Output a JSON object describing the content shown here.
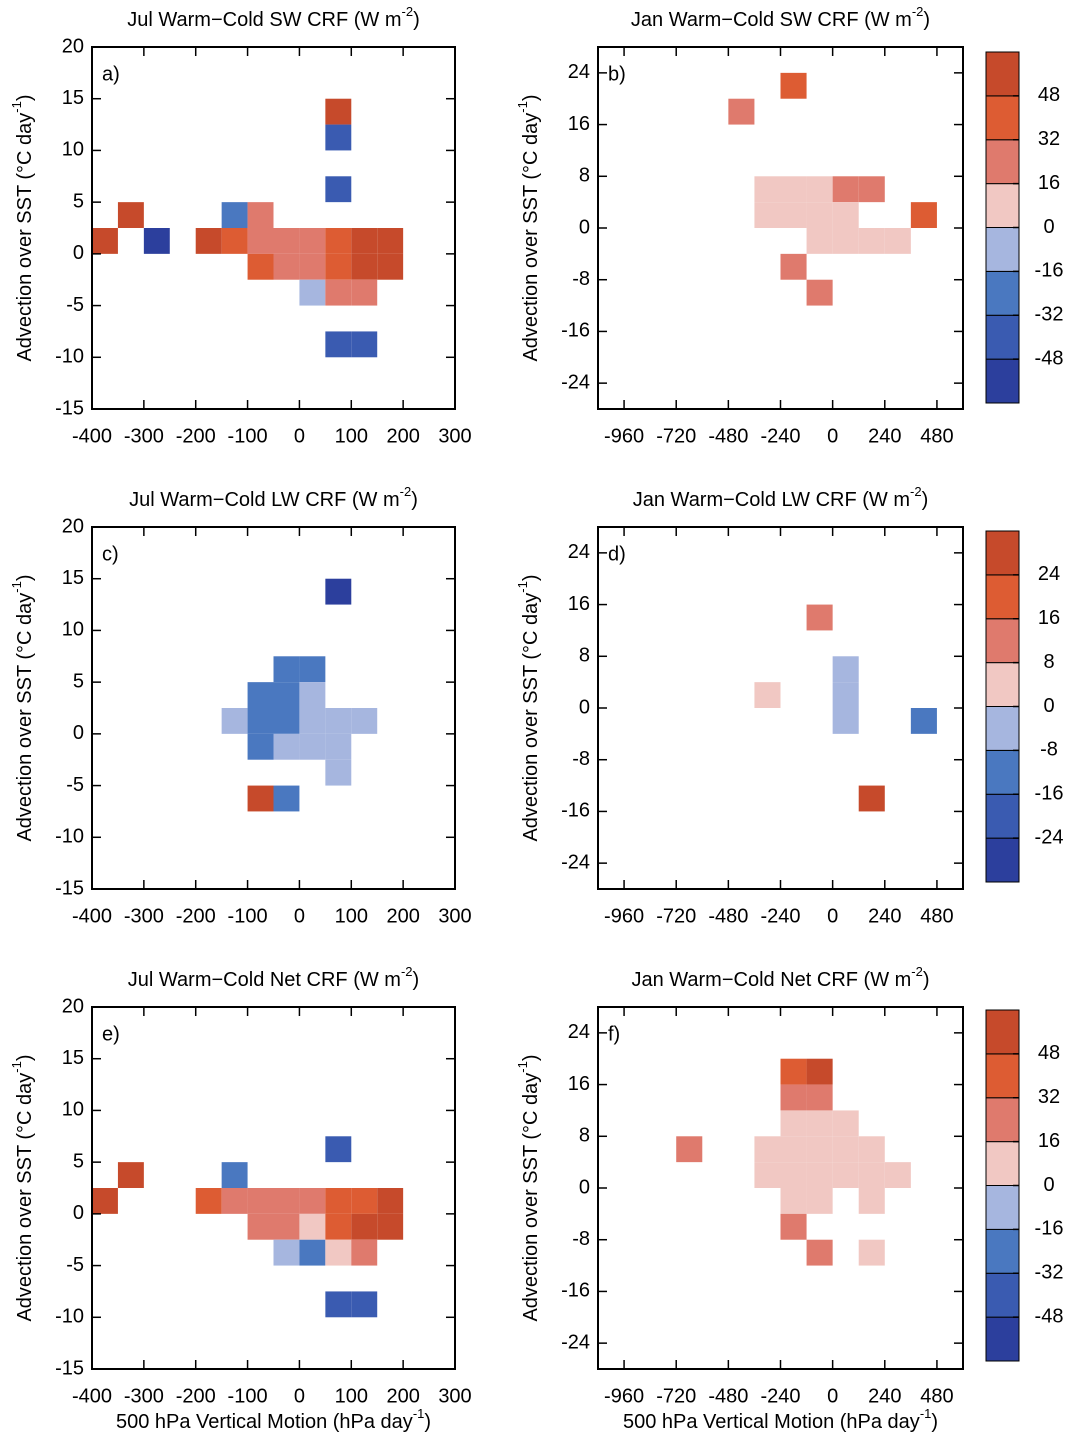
{
  "chart_data": [
    {
      "type": "heatmap",
      "panel": "a)",
      "title": [
        "Jul Warm−Cold SW CRF (W m",
        "-2",
        ")"
      ],
      "y_label": [
        "Advection over SST (°C day",
        "-1",
        ")"
      ],
      "xlim": [
        -400,
        300
      ],
      "xticks": [
        -400,
        -300,
        -200,
        -100,
        0,
        100,
        200,
        300
      ],
      "ylim": [
        -15,
        20
      ],
      "yticks": [
        -15,
        -10,
        -5,
        0,
        5,
        10,
        15,
        20
      ],
      "x": [
        [
          -400,
          -350
        ],
        [
          -350,
          -300
        ],
        [
          -300,
          -250
        ],
        [
          -200,
          -150
        ],
        [
          -150,
          -100
        ],
        [
          -150,
          -100
        ],
        [
          -100,
          -50
        ],
        [
          -100,
          -50
        ],
        [
          -100,
          -50
        ],
        [
          -50,
          0
        ],
        [
          -50,
          0
        ],
        [
          0,
          50
        ],
        [
          0,
          50
        ],
        [
          0,
          50
        ],
        [
          50,
          100
        ],
        [
          50,
          100
        ],
        [
          50,
          100
        ],
        [
          50,
          100
        ],
        [
          50,
          100
        ],
        [
          50,
          100
        ],
        [
          50,
          100
        ],
        [
          100,
          150
        ],
        [
          100,
          150
        ],
        [
          100,
          150
        ],
        [
          100,
          150
        ],
        [
          150,
          200
        ],
        [
          150,
          200
        ]
      ],
      "y": [
        [
          0,
          2.5
        ],
        [
          2.5,
          5
        ],
        [
          0,
          2.5
        ],
        [
          0,
          2.5
        ],
        [
          0,
          2.5
        ],
        [
          2.5,
          5
        ],
        [
          2.5,
          5
        ],
        [
          0,
          2.5
        ],
        [
          -2.5,
          0
        ],
        [
          0,
          2.5
        ],
        [
          -2.5,
          0
        ],
        [
          0,
          2.5
        ],
        [
          -2.5,
          0
        ],
        [
          -5,
          -2.5
        ],
        [
          12.5,
          15
        ],
        [
          10,
          12.5
        ],
        [
          5,
          7.5
        ],
        [
          0,
          2.5
        ],
        [
          -2.5,
          0
        ],
        [
          -5,
          -2.5
        ],
        [
          -10,
          -7.5
        ],
        [
          0,
          2.5
        ],
        [
          -2.5,
          0
        ],
        [
          -5,
          -2.5
        ],
        [
          -10,
          -7.5
        ],
        [
          0,
          2.5
        ],
        [
          -2.5,
          0
        ]
      ],
      "values": [
        56,
        56,
        -56,
        56,
        40,
        -24,
        24,
        24,
        40,
        24,
        24,
        24,
        24,
        -8,
        56,
        -40,
        -40,
        40,
        40,
        24,
        -40,
        56,
        56,
        24,
        -40,
        56,
        56
      ]
    },
    {
      "type": "heatmap",
      "panel": "b)",
      "title": [
        "Jan Warm−Cold SW CRF (W m",
        "-2",
        ")"
      ],
      "y_label": [
        "Advection over SST (°C day",
        "-1",
        ")"
      ],
      "xlim": [
        -1080,
        600
      ],
      "xticks": [
        -960,
        -720,
        -480,
        -240,
        0,
        240,
        480
      ],
      "ylim": [
        -28,
        28
      ],
      "yticks": [
        -24,
        -16,
        -8,
        0,
        8,
        16,
        24
      ],
      "x": [
        [
          -240,
          -120
        ],
        [
          -480,
          -360
        ],
        [
          -360,
          -240
        ],
        [
          -240,
          -120
        ],
        [
          -120,
          0
        ],
        [
          0,
          120
        ],
        [
          120,
          240
        ],
        [
          -360,
          -240
        ],
        [
          -240,
          -120
        ],
        [
          -120,
          0
        ],
        [
          0,
          120
        ],
        [
          360,
          480
        ],
        [
          -120,
          0
        ],
        [
          0,
          120
        ],
        [
          120,
          240
        ],
        [
          240,
          360
        ],
        [
          -240,
          -120
        ],
        [
          -120,
          0
        ]
      ],
      "y": [
        [
          20,
          24
        ],
        [
          16,
          20
        ],
        [
          4,
          8
        ],
        [
          4,
          8
        ],
        [
          4,
          8
        ],
        [
          4,
          8
        ],
        [
          4,
          8
        ],
        [
          0,
          4
        ],
        [
          0,
          4
        ],
        [
          0,
          4
        ],
        [
          0,
          4
        ],
        [
          0,
          4
        ],
        [
          -4,
          0
        ],
        [
          -4,
          0
        ],
        [
          -4,
          0
        ],
        [
          -4,
          0
        ],
        [
          -8,
          -4
        ],
        [
          -12,
          -8
        ]
      ],
      "values": [
        40,
        24,
        8,
        8,
        8,
        24,
        24,
        8,
        8,
        8,
        8,
        40,
        8,
        8,
        8,
        8,
        24,
        24
      ],
      "colorbar": {
        "levels": [
          -48,
          -32,
          -16,
          0,
          16,
          32,
          48
        ],
        "colors": [
          "#2c3f9d",
          "#3a5bb1",
          "#4a78c0",
          "#a6b6df",
          "#f1c8c3",
          "#df7a6d",
          "#dd5c33",
          "#c64a2b"
        ]
      }
    },
    {
      "type": "heatmap",
      "panel": "c)",
      "title": [
        "Jul Warm−Cold LW CRF (W m",
        "-2",
        ")"
      ],
      "y_label": [
        "Advection over SST (°C day",
        "-1",
        ")"
      ],
      "xlim": [
        -400,
        300
      ],
      "xticks": [
        -400,
        -300,
        -200,
        -100,
        0,
        100,
        200,
        300
      ],
      "ylim": [
        -15,
        20
      ],
      "yticks": [
        -15,
        -10,
        -5,
        0,
        5,
        10,
        15,
        20
      ],
      "x": [
        [
          50,
          100
        ],
        [
          -50,
          0
        ],
        [
          0,
          50
        ],
        [
          -100,
          -50
        ],
        [
          -50,
          0
        ],
        [
          0,
          50
        ],
        [
          -150,
          -100
        ],
        [
          -100,
          -50
        ],
        [
          -50,
          0
        ],
        [
          0,
          50
        ],
        [
          50,
          100
        ],
        [
          100,
          150
        ],
        [
          -100,
          -50
        ],
        [
          -50,
          0
        ],
        [
          0,
          50
        ],
        [
          50,
          100
        ],
        [
          50,
          100
        ],
        [
          -100,
          -50
        ],
        [
          -50,
          0
        ]
      ],
      "y": [
        [
          12.5,
          15
        ],
        [
          5,
          7.5
        ],
        [
          5,
          7.5
        ],
        [
          2.5,
          5
        ],
        [
          2.5,
          5
        ],
        [
          2.5,
          5
        ],
        [
          0,
          2.5
        ],
        [
          0,
          2.5
        ],
        [
          0,
          2.5
        ],
        [
          0,
          2.5
        ],
        [
          0,
          2.5
        ],
        [
          0,
          2.5
        ],
        [
          -2.5,
          0
        ],
        [
          -2.5,
          0
        ],
        [
          -2.5,
          0
        ],
        [
          -2.5,
          0
        ],
        [
          -5,
          -2.5
        ],
        [
          -7.5,
          -5
        ],
        [
          -7.5,
          -5
        ]
      ],
      "values": [
        -28,
        -12,
        -12,
        -12,
        -12,
        -4,
        -4,
        -12,
        -12,
        -4,
        -4,
        -4,
        -12,
        -4,
        -4,
        -4,
        -4,
        28,
        -12
      ]
    },
    {
      "type": "heatmap",
      "panel": "d)",
      "title": [
        "Jan Warm−Cold LW CRF (W m",
        "-2",
        ")"
      ],
      "y_label": [
        "Advection over SST (°C day",
        "-1",
        ")"
      ],
      "xlim": [
        -1080,
        600
      ],
      "xticks": [
        -960,
        -720,
        -480,
        -240,
        0,
        240,
        480
      ],
      "ylim": [
        -28,
        28
      ],
      "yticks": [
        -24,
        -16,
        -8,
        0,
        8,
        16,
        24
      ],
      "x": [
        [
          -120,
          0
        ],
        [
          -360,
          -240
        ],
        [
          0,
          120
        ],
        [
          0,
          120
        ],
        [
          0,
          120
        ],
        [
          360,
          480
        ],
        [
          120,
          240
        ]
      ],
      "y": [
        [
          12,
          16
        ],
        [
          0,
          4
        ],
        [
          4,
          8
        ],
        [
          0,
          4
        ],
        [
          -4,
          0
        ],
        [
          -4,
          0
        ],
        [
          -16,
          -12
        ]
      ],
      "values": [
        12,
        4,
        -4,
        -4,
        -4,
        -12,
        28
      ],
      "colorbar": {
        "levels": [
          -24,
          -16,
          -8,
          0,
          8,
          16,
          24
        ],
        "colors": [
          "#2c3f9d",
          "#3a5bb1",
          "#4a78c0",
          "#a6b6df",
          "#f1c8c3",
          "#df7a6d",
          "#dd5c33",
          "#c64a2b"
        ]
      }
    },
    {
      "type": "heatmap",
      "panel": "e)",
      "title": [
        "Jul Warm−Cold Net CRF (W m",
        "-2",
        ")"
      ],
      "y_label": [
        "Advection over SST (°C day",
        "-1",
        ")"
      ],
      "x_label": [
        "500 hPa Vertical Motion (hPa day",
        "-1",
        ")"
      ],
      "xlim": [
        -400,
        300
      ],
      "xticks": [
        -400,
        -300,
        -200,
        -100,
        0,
        100,
        200,
        300
      ],
      "ylim": [
        -15,
        20
      ],
      "yticks": [
        -15,
        -10,
        -5,
        0,
        5,
        10,
        15,
        20
      ],
      "x": [
        [
          -350,
          -300
        ],
        [
          -150,
          -100
        ],
        [
          50,
          100
        ],
        [
          -400,
          -350
        ],
        [
          -200,
          -150
        ],
        [
          -150,
          -100
        ],
        [
          -100,
          -50
        ],
        [
          -50,
          0
        ],
        [
          0,
          50
        ],
        [
          50,
          100
        ],
        [
          100,
          150
        ],
        [
          150,
          200
        ],
        [
          -100,
          -50
        ],
        [
          -50,
          0
        ],
        [
          0,
          50
        ],
        [
          50,
          100
        ],
        [
          100,
          150
        ],
        [
          150,
          200
        ],
        [
          -50,
          0
        ],
        [
          0,
          50
        ],
        [
          50,
          100
        ],
        [
          100,
          150
        ],
        [
          50,
          100
        ],
        [
          100,
          150
        ]
      ],
      "y": [
        [
          2.5,
          5
        ],
        [
          2.5,
          5
        ],
        [
          5,
          7.5
        ],
        [
          0,
          2.5
        ],
        [
          0,
          2.5
        ],
        [
          0,
          2.5
        ],
        [
          0,
          2.5
        ],
        [
          0,
          2.5
        ],
        [
          0,
          2.5
        ],
        [
          0,
          2.5
        ],
        [
          0,
          2.5
        ],
        [
          0,
          2.5
        ],
        [
          -2.5,
          0
        ],
        [
          -2.5,
          0
        ],
        [
          -2.5,
          0
        ],
        [
          -2.5,
          0
        ],
        [
          -2.5,
          0
        ],
        [
          -2.5,
          0
        ],
        [
          -5,
          -2.5
        ],
        [
          -5,
          -2.5
        ],
        [
          -5,
          -2.5
        ],
        [
          -5,
          -2.5
        ],
        [
          -10,
          -7.5
        ],
        [
          -10,
          -7.5
        ]
      ],
      "values": [
        56,
        -24,
        -40,
        56,
        40,
        24,
        24,
        24,
        24,
        40,
        40,
        56,
        24,
        24,
        8,
        40,
        56,
        56,
        -8,
        -24,
        8,
        24,
        -40,
        -40
      ]
    },
    {
      "type": "heatmap",
      "panel": "f)",
      "title": [
        "Jan Warm−Cold Net CRF (W m",
        "-2",
        ")"
      ],
      "y_label": [
        "Advection over SST (°C day",
        "-1",
        ")"
      ],
      "x_label": [
        "500 hPa Vertical Motion (hPa day",
        "-1",
        ")"
      ],
      "xlim": [
        -1080,
        600
      ],
      "xticks": [
        -960,
        -720,
        -480,
        -240,
        0,
        240,
        480
      ],
      "ylim": [
        -28,
        28
      ],
      "yticks": [
        -24,
        -16,
        -8,
        0,
        8,
        16,
        24
      ],
      "x": [
        [
          -240,
          -120
        ],
        [
          -120,
          0
        ],
        [
          -240,
          -120
        ],
        [
          -120,
          0
        ],
        [
          -240,
          -120
        ],
        [
          -120,
          0
        ],
        [
          0,
          120
        ],
        [
          -720,
          -600
        ],
        [
          -360,
          -240
        ],
        [
          -240,
          -120
        ],
        [
          -120,
          0
        ],
        [
          0,
          120
        ],
        [
          120,
          240
        ],
        [
          -360,
          -240
        ],
        [
          -240,
          -120
        ],
        [
          -120,
          0
        ],
        [
          0,
          120
        ],
        [
          120,
          240
        ],
        [
          240,
          360
        ],
        [
          -240,
          -120
        ],
        [
          -120,
          0
        ],
        [
          120,
          240
        ],
        [
          -240,
          -120
        ],
        [
          -120,
          0
        ],
        [
          120,
          240
        ]
      ],
      "y": [
        [
          16,
          20
        ],
        [
          16,
          20
        ],
        [
          12,
          16
        ],
        [
          12,
          16
        ],
        [
          8,
          12
        ],
        [
          8,
          12
        ],
        [
          8,
          12
        ],
        [
          4,
          8
        ],
        [
          4,
          8
        ],
        [
          4,
          8
        ],
        [
          4,
          8
        ],
        [
          4,
          8
        ],
        [
          4,
          8
        ],
        [
          0,
          4
        ],
        [
          0,
          4
        ],
        [
          0,
          4
        ],
        [
          0,
          4
        ],
        [
          0,
          4
        ],
        [
          0,
          4
        ],
        [
          -4,
          0
        ],
        [
          -4,
          0
        ],
        [
          -4,
          0
        ],
        [
          -8,
          -4
        ],
        [
          -12,
          -8
        ],
        [
          -12,
          -8
        ]
      ],
      "values": [
        40,
        56,
        24,
        24,
        8,
        8,
        8,
        24,
        8,
        8,
        8,
        8,
        8,
        8,
        8,
        8,
        8,
        8,
        8,
        8,
        8,
        8,
        24,
        24,
        8
      ],
      "colorbar": {
        "levels": [
          -48,
          -32,
          -16,
          0,
          16,
          32,
          48
        ],
        "colors": [
          "#2c3f9d",
          "#3a5bb1",
          "#4a78c0",
          "#a6b6df",
          "#f1c8c3",
          "#df7a6d",
          "#dd5c33",
          "#c64a2b"
        ]
      }
    }
  ]
}
